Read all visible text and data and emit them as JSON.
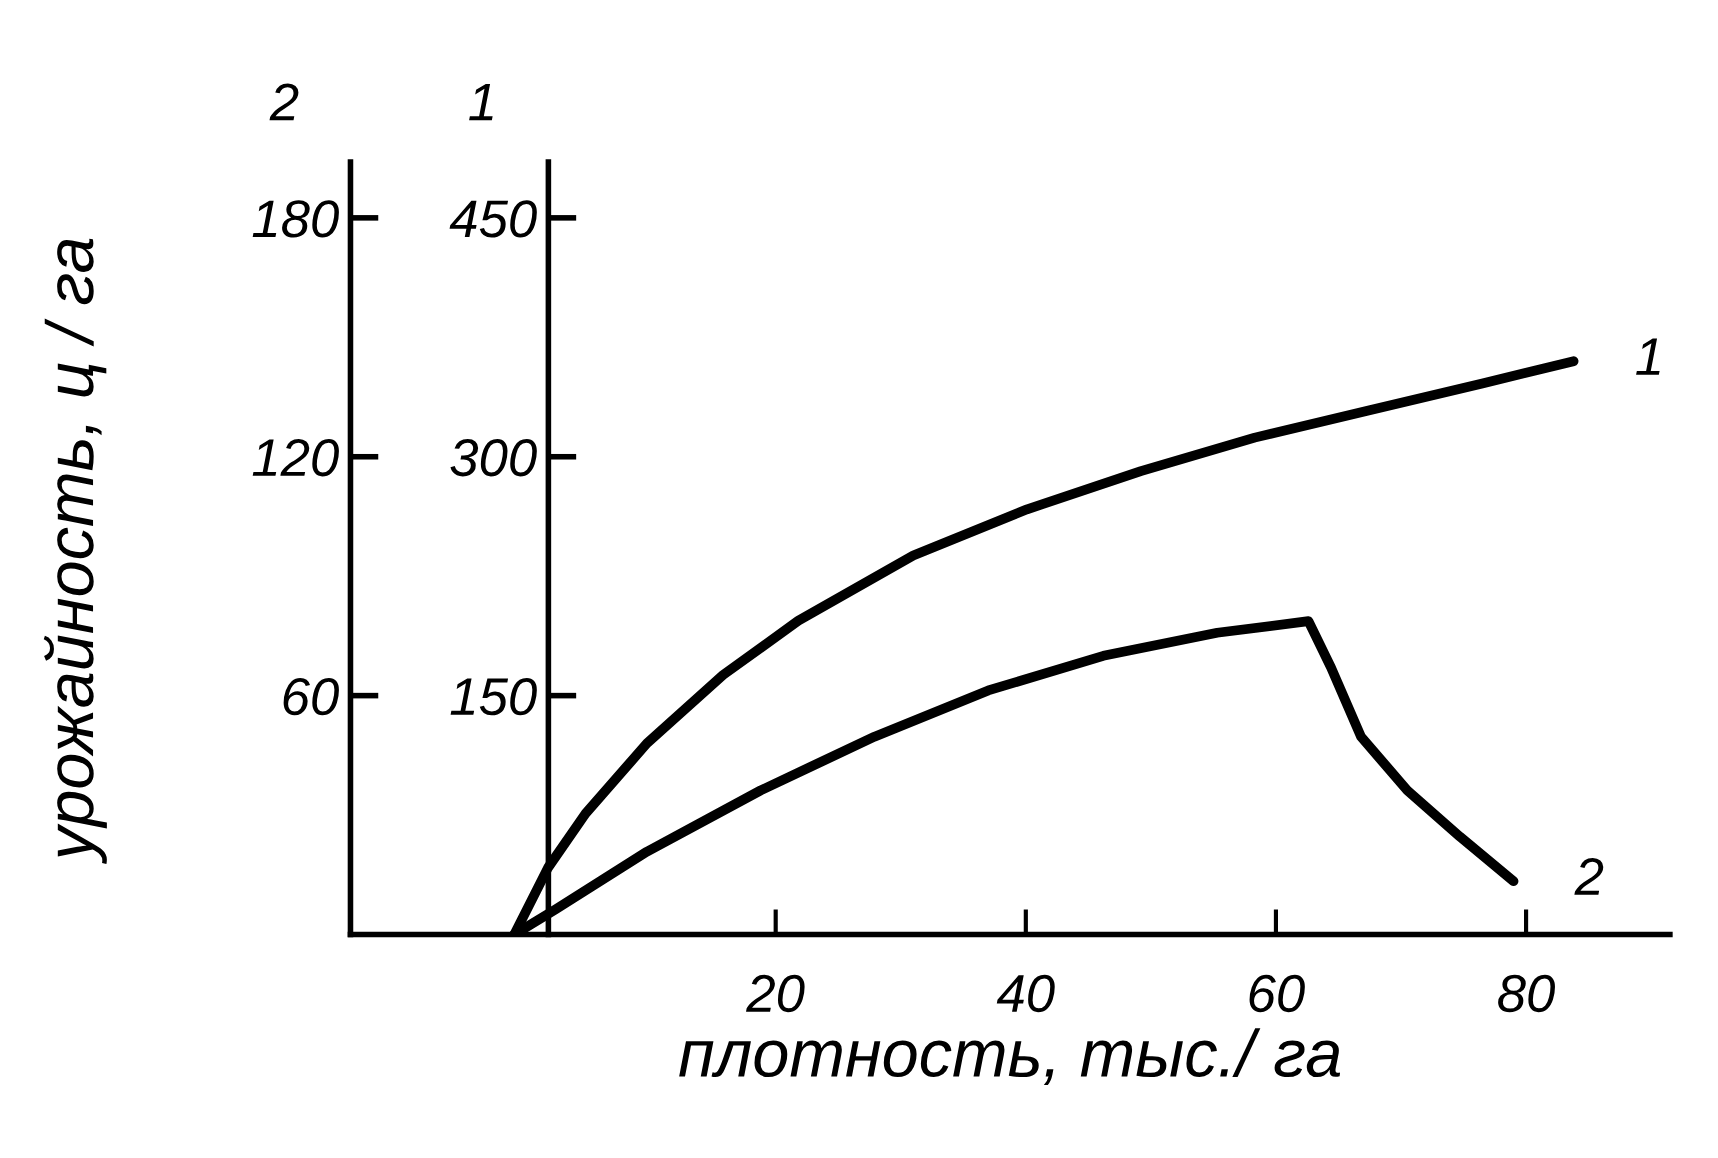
{
  "chart_data": {
    "type": "line",
    "xlabel": "плотность, тыс./ га",
    "ylabel": "урожайность, ц / га",
    "annotations": [
      "2",
      "1"
    ],
    "xlim": [
      -14,
      91.5
    ],
    "xticks": [
      20,
      40,
      60,
      80
    ],
    "ylim": [
      0,
      194
    ],
    "yticks": [
      60,
      120,
      180
    ],
    "y2lim": [
      0,
      485
    ],
    "y2ticks": [
      150,
      300,
      450
    ],
    "grid": false,
    "legend": false,
    "line_style": "solid",
    "marker": "none",
    "series": [
      {
        "name": "1",
        "color": "#000000",
        "axis": "y2",
        "x": [
          -0.9,
          1.8,
          4.8,
          9.7,
          15.8,
          21.8,
          31.0,
          40.1,
          49.2,
          58.3,
          67.4,
          76.5,
          83.8
        ],
        "values": [
          0,
          42,
          76,
          120,
          163,
          197,
          238,
          267,
          291,
          312,
          329,
          346,
          360
        ]
      },
      {
        "name": "2",
        "color": "#000000",
        "axis": "y",
        "x": [
          -0.9,
          2.4,
          9.7,
          18.8,
          27.9,
          37.0,
          46.2,
          55.3,
          62.6,
          64.4,
          66.8,
          70.5,
          74.7,
          79.0
        ],
        "values": [
          0,
          6.3,
          20.8,
          36.2,
          49.7,
          61.3,
          70.0,
          75.8,
          78.7,
          67.1,
          49.7,
          36.2,
          24.6,
          13.4
        ]
      }
    ]
  }
}
